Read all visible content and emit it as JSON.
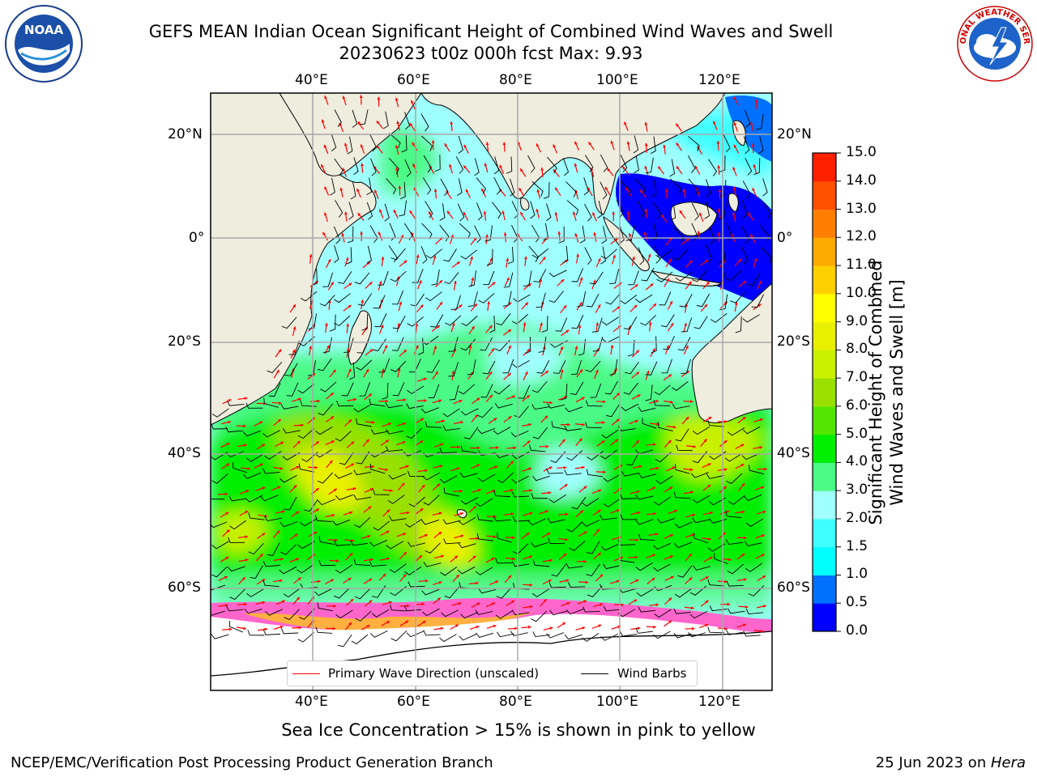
{
  "header": {
    "title_line1": "GEFS MEAN Indian Ocean Significant Height of Combined Wind Waves and Swell",
    "title_line2": "20230623 t00z 000h fcst   Max: 9.93"
  },
  "logos": {
    "left": {
      "name": "noaa-logo",
      "text": "NOAA"
    },
    "right": {
      "name": "national-weather-service-logo",
      "text": "NATIONAL WEATHER SERVICE"
    }
  },
  "map": {
    "lon_labels": [
      "40°E",
      "60°E",
      "80°E",
      "100°E",
      "120°E"
    ],
    "lat_labels": [
      "20°N",
      "0°",
      "20°S",
      "40°S",
      "60°S"
    ],
    "lon_range": [
      20,
      130
    ],
    "lat_range": [
      -75,
      25
    ],
    "land_color": "#efedde",
    "sea_ice_color": "#ff66cc",
    "wave_arrow_color": "#ff0000",
    "barb_color": "#000000"
  },
  "legend": {
    "wave": "Primary Wave Direction (unscaled)",
    "barbs": "Wind Barbs"
  },
  "colorbar": {
    "label_line1": "Significant Height of Combined",
    "label_line2": "Wind Waves and Swell [m]",
    "ticks": [
      "0.0",
      "0.5",
      "1.0",
      "1.5",
      "2.0",
      "3.0",
      "4.0",
      "5.0",
      "6.0",
      "7.0",
      "8.0",
      "9.0",
      "10.0",
      "11.0",
      "12.0",
      "13.0",
      "14.0",
      "15.0"
    ],
    "colors": [
      "#0000ff",
      "#0070ff",
      "#00ffff",
      "#40ffff",
      "#a0ffff",
      "#4cfa86",
      "#00ee00",
      "#55e600",
      "#99e000",
      "#c8f000",
      "#e8f000",
      "#ffff00",
      "#ffd000",
      "#ffaa00",
      "#ff8000",
      "#ff5000",
      "#ff2000",
      "#ff0000"
    ]
  },
  "chart_data": {
    "type": "heatmap",
    "variable": "Significant Height of Combined Wind Waves and Swell",
    "units": "m",
    "max": 9.93,
    "range": [
      0,
      15
    ]
  },
  "footer": {
    "note": "Sea Ice Concentration > 15% is shown in pink to yellow",
    "left": "NCEP/EMC/Verification Post Processing Product Generation Branch",
    "date": "25 Jun 2023 on ",
    "machine": "Hera"
  }
}
